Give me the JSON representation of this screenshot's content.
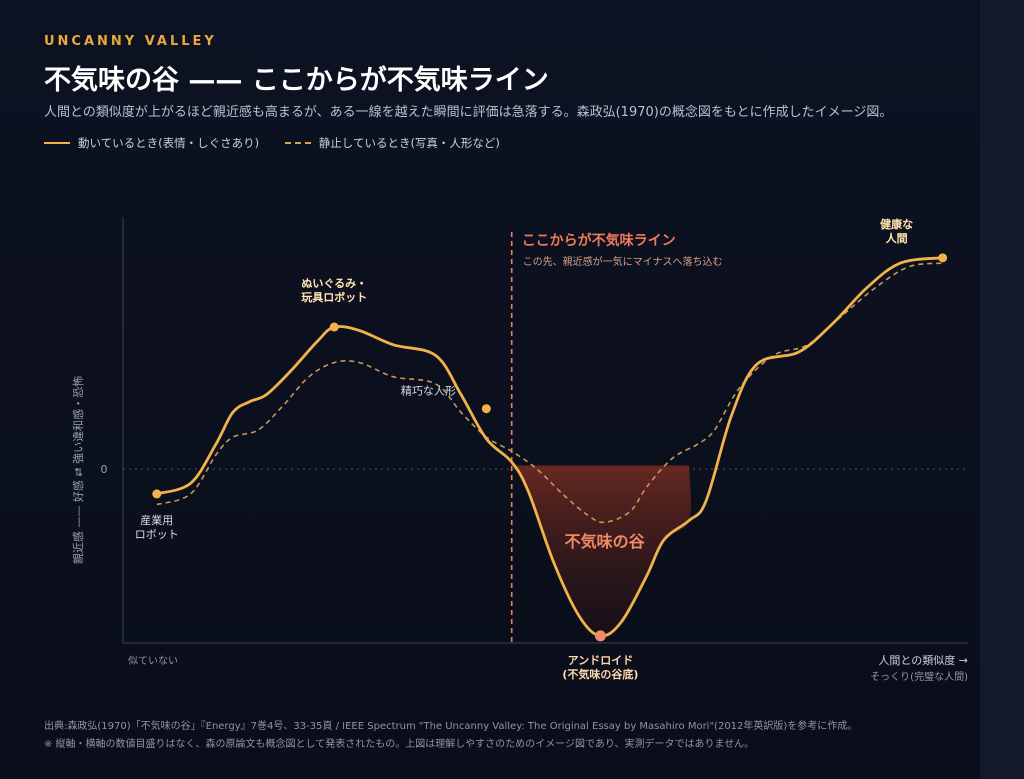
{
  "header": {
    "eyebrow": "UNCANNY VALLEY",
    "title": "不気味の谷 —— ここからが不気味ライン",
    "subtitle": "人間との類似度が上がるほど親近感も高まるが、ある一線を越えた瞬間に評価は急落する。森政弘(1970)の概念図をもとに作成したイメージ図。"
  },
  "legend": {
    "moving": "動いているとき(表情・しぐさあり)",
    "still": "静止しているとき(写真・人形など)"
  },
  "chart_data": {
    "type": "line",
    "ylabel": "親近感 —— 好感 ⇄ 強い違和感・恐怖",
    "xlabel": "人間との類似度 →",
    "x_start_label": "似ていない",
    "x_end_label": "そっくり(完璧な人間)",
    "zero_label": "0",
    "xlim": [
      0,
      100
    ],
    "ylim": [
      -100,
      140
    ],
    "series": [
      {
        "name": "動いているとき(表情・しぐさあり)",
        "style": "solid",
        "color": "#f1b24a",
        "points": [
          [
            4,
            -16
          ],
          [
            8,
            -10
          ],
          [
            11,
            12
          ],
          [
            13,
            30
          ],
          [
            15,
            36
          ],
          [
            17,
            40
          ],
          [
            20,
            54
          ],
          [
            23,
            70
          ],
          [
            25,
            78
          ],
          [
            28,
            76
          ],
          [
            32,
            68
          ],
          [
            37,
            62
          ],
          [
            40,
            40
          ],
          [
            43,
            15
          ],
          [
            46,
            2
          ],
          [
            48,
            -15
          ],
          [
            51,
            -55
          ],
          [
            54,
            -85
          ],
          [
            56.5,
            -96
          ],
          [
            59,
            -88
          ],
          [
            62,
            -62
          ],
          [
            64,
            -42
          ],
          [
            67,
            -31
          ],
          [
            69,
            -20
          ],
          [
            72,
            28
          ],
          [
            75,
            57
          ],
          [
            80,
            64
          ],
          [
            84,
            80
          ],
          [
            88,
            100
          ],
          [
            92,
            114
          ],
          [
            97,
            117
          ]
        ]
      },
      {
        "name": "静止しているとき(写真・人形など)",
        "style": "dashed",
        "color": "#c9975a",
        "points": [
          [
            4,
            -22
          ],
          [
            8,
            -16
          ],
          [
            11,
            6
          ],
          [
            13,
            16
          ],
          [
            16,
            20
          ],
          [
            19,
            34
          ],
          [
            22,
            50
          ],
          [
            25,
            58
          ],
          [
            28,
            58
          ],
          [
            32,
            50
          ],
          [
            37,
            46
          ],
          [
            40,
            30
          ],
          [
            43,
            16
          ],
          [
            46,
            8
          ],
          [
            49,
            -2
          ],
          [
            52,
            -16
          ],
          [
            55,
            -28
          ],
          [
            57,
            -32
          ],
          [
            60,
            -26
          ],
          [
            62,
            -12
          ],
          [
            65,
            4
          ],
          [
            68,
            12
          ],
          [
            70,
            20
          ],
          [
            73,
            44
          ],
          [
            77,
            62
          ],
          [
            81,
            68
          ],
          [
            85,
            84
          ],
          [
            89,
            100
          ],
          [
            93,
            112
          ],
          [
            97,
            114
          ]
        ]
      }
    ],
    "annotations": [
      {
        "label": "産業用\nロボット",
        "x": 4,
        "y": -16
      },
      {
        "label": "ぬいぐるみ・\n玩具ロボット",
        "x": 25,
        "y": 78
      },
      {
        "label": "精巧な人形",
        "x": 43,
        "y": 32
      },
      {
        "label": "アンドロイド\n(不気味の谷底)",
        "x": 56.5,
        "y": -96
      },
      {
        "label": "健康な\n人間",
        "x": 97,
        "y": 117
      }
    ],
    "threshold": {
      "x": 46,
      "label": "ここからが不気味ライン",
      "sublabel": "この先、親近感が一気にマイナスへ落ち込む"
    },
    "valley": {
      "label": "不気味の谷",
      "x_from": 46,
      "x_to": 67
    },
    "colors": {
      "moving": "#f1b24a",
      "still": "#c9975a",
      "threshold": "#f07a5a",
      "valley_top": "#7a2e22",
      "valley_text": "#f08a66"
    }
  },
  "footer": {
    "source": "出典:森政弘(1970)「不気味の谷」『Energy』7巻4号、33-35頁 / IEEE Spectrum \"The Uncanny Valley: The Original Essay by Masahiro Mori\"(2012年英訳版)を参考に作成。",
    "note": "※ 縦軸・横軸の数値目盛りはなく、森の原論文も概念図として発表されたもの。上図は理解しやすさのためのイメージ図であり、実測データではありません。"
  }
}
